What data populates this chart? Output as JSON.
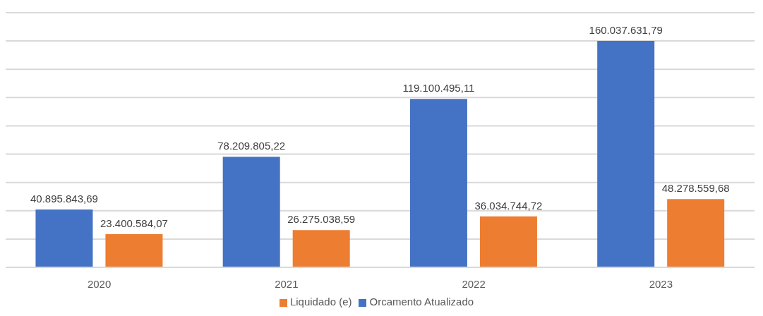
{
  "chart_data": {
    "type": "bar",
    "categories": [
      "2020",
      "2021",
      "2022",
      "2023"
    ],
    "series": [
      {
        "name": "Orcamento Atualizado",
        "color": "#4472c4",
        "values": [
          40895843.69,
          78209805.22,
          119100495.11,
          160037631.79
        ],
        "value_labels": [
          "40.895.843,69",
          "78.209.805,22",
          "119.100.495,11",
          "160.037.631,79"
        ]
      },
      {
        "name": "Liquidado (e)",
        "color": "#ed7d31",
        "values": [
          23400584.07,
          26275038.59,
          36034744.72,
          48278559.68
        ],
        "value_labels": [
          "23.400.584,07",
          "26.275.038,59",
          "36.034.744,72",
          "48.278.559,68"
        ]
      }
    ],
    "ylim": [
      0,
      180000000
    ],
    "yticks": [
      {
        "value": 0,
        "label": null
      },
      {
        "value": 20000000,
        "label": null
      },
      {
        "value": 40000000,
        "label": null
      },
      {
        "value": 60000000,
        "label": null
      },
      {
        "value": 80000000,
        "label": null
      },
      {
        "value": 100000000,
        "label": null
      },
      {
        "value": 120000000,
        "label": null
      },
      {
        "value": 140000000,
        "label": null
      },
      {
        "value": 160000000,
        "label": null
      },
      {
        "value": 180000000,
        "label": null
      }
    ],
    "grid": "y",
    "legend": "bottom",
    "tick_labels": "x"
  }
}
